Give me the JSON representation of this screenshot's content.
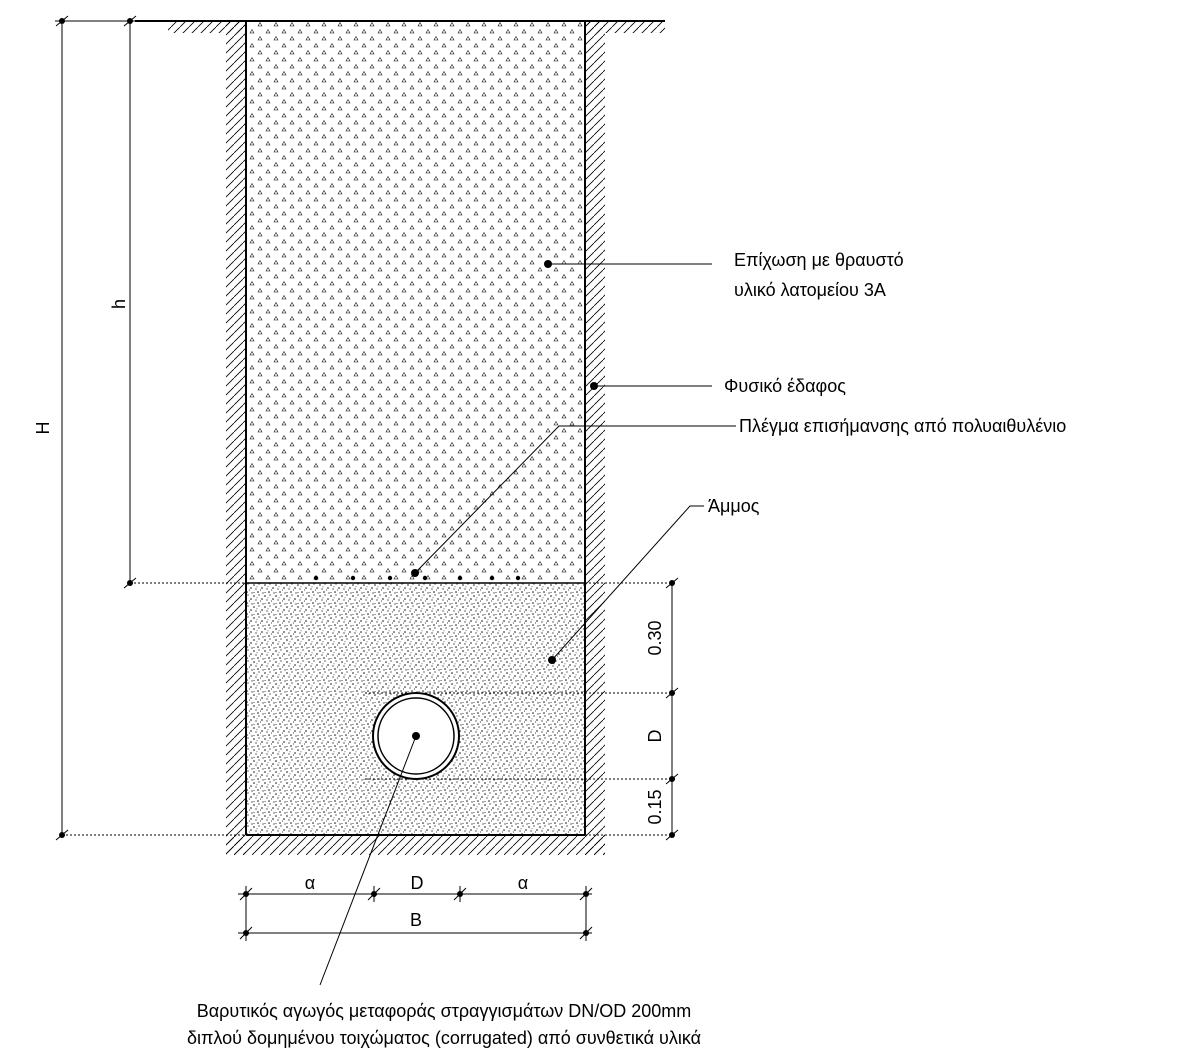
{
  "labels": {
    "backfill_line1": "Επίχωση με θραυστό",
    "backfill_line2": "υλικό λατομείου 3Α",
    "natural_soil": "Φυσικό έδαφος",
    "warning_mesh": "Πλέγμα επισήμανσης από πολυαιθυλένιο",
    "sand": "Άμμος",
    "pipe_line1": "Βαρυτικός αγωγός μεταφοράς στραγγισμάτων DN/OD 200mm",
    "pipe_line2": "διπλού δομημένου τοιχώματος (corrugated) από συνθετικά υλικά"
  },
  "dimensions": {
    "total_height": "H",
    "backfill_height": "h",
    "cover_above_pipe": "0.30",
    "pipe_diameter_vertical": "D",
    "bedding_below_pipe": "0.15",
    "side_clearance_left": "α",
    "pipe_diameter_horizontal": "D",
    "side_clearance_right": "α",
    "trench_width": "B"
  },
  "colors": {
    "line": "#000000",
    "background": "#ffffff"
  }
}
